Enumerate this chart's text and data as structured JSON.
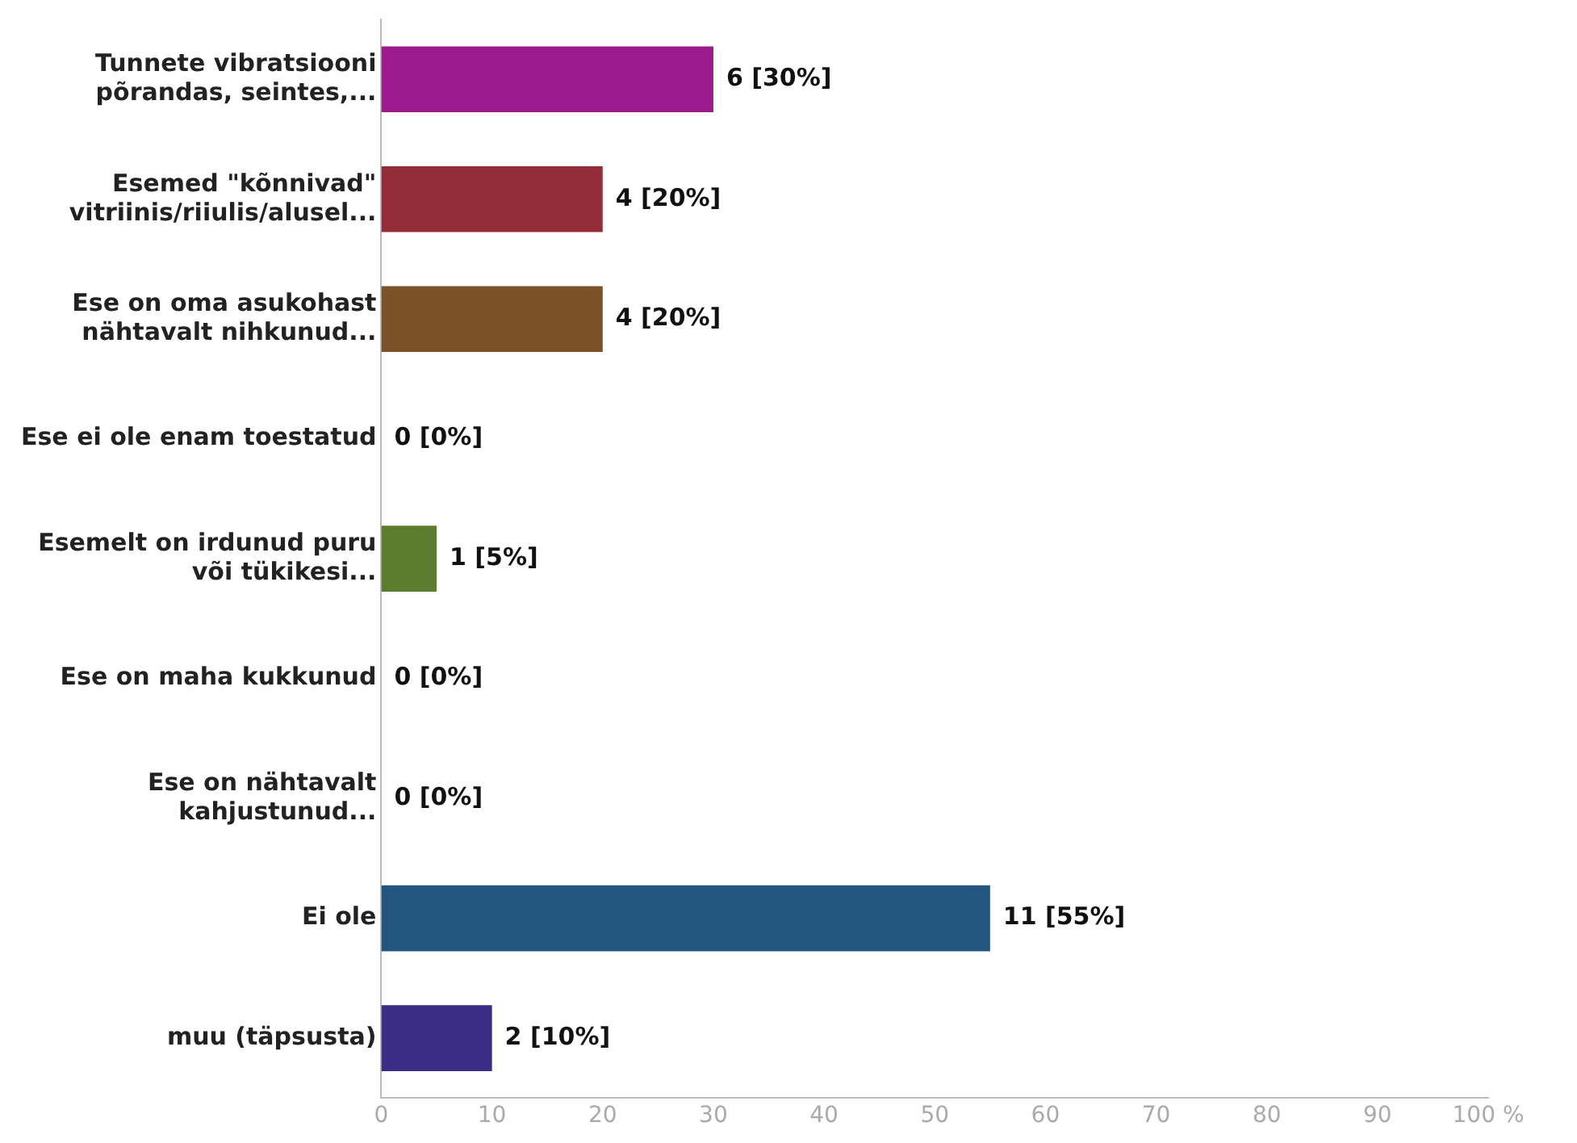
{
  "chart_data": {
    "type": "bar",
    "orientation": "horizontal",
    "categories": [
      "Tunnete vibratsiooni\npõrandas, seintes,...",
      "Esemed \"kõnnivad\"\nvitriinis/riiulis/alusel...",
      "Ese on oma asukohast\nnähtavalt nihkunud...",
      "Ese ei ole enam toestatud",
      "Esemelt on irdunud puru\nvõi tükikesi...",
      "Ese on maha kukkunud",
      "Ese on nähtavalt\nkahjustunud...",
      "Ei ole",
      "muu (täpsusta)"
    ],
    "values": [
      30,
      20,
      20,
      0,
      5,
      0,
      0,
      55,
      10
    ],
    "colors": [
      "#9c1a8c",
      "#952d38",
      "#7b5129",
      "#a0a0a0",
      "#5d7d2e",
      "#a0a0a0",
      "#a0a0a0",
      "#225680",
      "#3b2d85"
    ],
    "value_labels": [
      "6 [30%]",
      "4 [20%]",
      "4 [20%]",
      "0 [0%]",
      "1 [5%]",
      "0 [0%]",
      "0 [0%]",
      "11 [55%]",
      "2 [10%]"
    ],
    "xlim": [
      0,
      100
    ],
    "xticks": [
      0,
      10,
      20,
      30,
      40,
      50,
      60,
      70,
      80,
      90,
      {
        "value": 100,
        "label": "100 %"
      }
    ],
    "grid": false,
    "legend": false
  }
}
